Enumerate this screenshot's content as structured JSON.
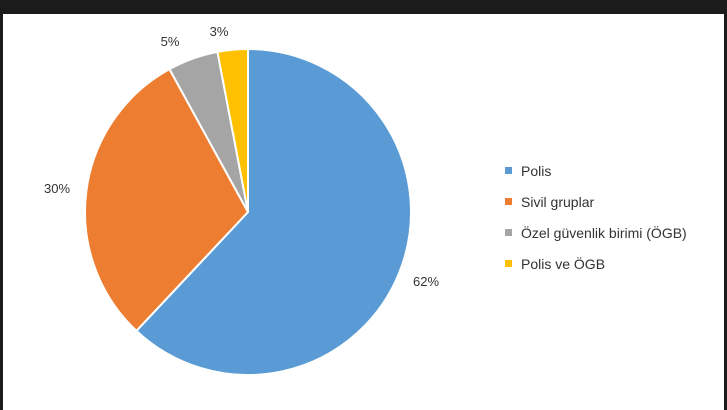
{
  "chart_data": {
    "type": "pie",
    "categories": [
      "Polis",
      "Sivil gruplar",
      "Özel güvenlik birimi (ÖGB)",
      "Polis ve ÖGB"
    ],
    "values": [
      62,
      30,
      5,
      3
    ],
    "data_labels": [
      "62%",
      "30%",
      "5%",
      "3%"
    ],
    "colors": [
      "#5b9bd5",
      "#ed7d31",
      "#a5a5a5",
      "#ffc000"
    ],
    "title": "",
    "legend_position": "right"
  }
}
